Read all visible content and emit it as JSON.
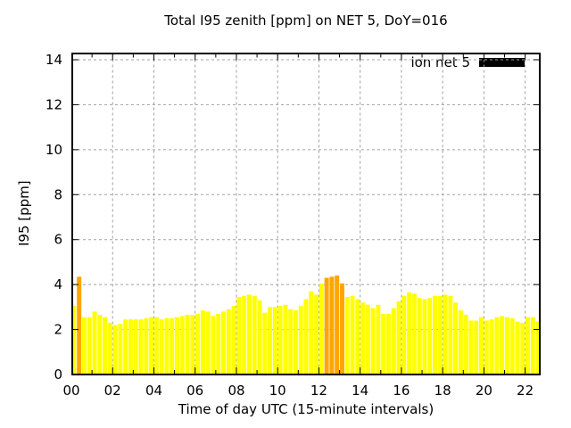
{
  "chart_data": {
    "type": "bar",
    "title": "Total I95 zenith [ppm] on NET 5, DoY=016",
    "xlabel": "Time of day UTC (15-minute intervals)",
    "ylabel": "I95 [ppm]",
    "legend": {
      "label": "ion net 5",
      "swatch_color": "#000000",
      "position": "top-right-inside"
    },
    "x_tick_labels": [
      "00",
      "02",
      "04",
      "06",
      "08",
      "10",
      "12",
      "14",
      "16",
      "18",
      "20",
      "22"
    ],
    "y_tick_labels": [
      "0",
      "2",
      "4",
      "6",
      "8",
      "10",
      "12",
      "14"
    ],
    "ylim": [
      0,
      14.3
    ],
    "xlim_hours": [
      0,
      22.78
    ],
    "grid": "dashed",
    "interval_minutes": 15,
    "categories": [
      "00:00",
      "00:15",
      "00:30",
      "00:45",
      "01:00",
      "01:15",
      "01:30",
      "01:45",
      "02:00",
      "02:15",
      "02:30",
      "02:45",
      "03:00",
      "03:15",
      "03:30",
      "03:45",
      "04:00",
      "04:15",
      "04:30",
      "04:45",
      "05:00",
      "05:15",
      "05:30",
      "05:45",
      "06:00",
      "06:15",
      "06:30",
      "06:45",
      "07:00",
      "07:15",
      "07:30",
      "07:45",
      "08:00",
      "08:15",
      "08:30",
      "08:45",
      "09:00",
      "09:15",
      "09:30",
      "09:45",
      "10:00",
      "10:15",
      "10:30",
      "10:45",
      "11:00",
      "11:15",
      "11:30",
      "11:45",
      "12:00",
      "12:15",
      "12:30",
      "12:45",
      "13:00",
      "13:15",
      "13:30",
      "13:45",
      "14:00",
      "14:15",
      "14:30",
      "14:45",
      "15:00",
      "15:15",
      "15:30",
      "15:45",
      "16:00",
      "16:15",
      "16:30",
      "16:45",
      "17:00",
      "17:15",
      "17:30",
      "17:45",
      "18:00",
      "18:15",
      "18:30",
      "18:45",
      "19:00",
      "19:15",
      "19:30",
      "19:45",
      "20:00",
      "20:15",
      "20:30",
      "20:45",
      "21:00",
      "21:15",
      "21:30",
      "21:45",
      "22:00",
      "22:15",
      "22:30"
    ],
    "values": [
      3.05,
      4.35,
      2.55,
      2.55,
      2.8,
      2.65,
      2.55,
      2.3,
      2.2,
      2.25,
      2.45,
      2.45,
      2.45,
      2.45,
      2.5,
      2.55,
      2.55,
      2.45,
      2.5,
      2.5,
      2.55,
      2.6,
      2.65,
      2.65,
      2.7,
      2.85,
      2.8,
      2.6,
      2.7,
      2.8,
      2.9,
      3.05,
      3.45,
      3.5,
      3.55,
      3.5,
      3.3,
      2.75,
      3.0,
      3.0,
      3.05,
      3.1,
      2.9,
      2.85,
      3.05,
      3.35,
      3.7,
      3.55,
      4.05,
      4.3,
      4.35,
      4.4,
      4.05,
      3.45,
      3.5,
      3.35,
      3.2,
      3.1,
      2.95,
      3.1,
      2.7,
      2.7,
      2.95,
      3.25,
      3.5,
      3.65,
      3.6,
      3.4,
      3.35,
      3.4,
      3.5,
      3.5,
      3.55,
      3.5,
      3.2,
      2.85,
      2.65,
      2.4,
      2.4,
      2.55,
      2.4,
      2.45,
      2.55,
      2.6,
      2.55,
      2.5,
      2.35,
      2.3,
      2.55,
      2.55,
      2.35
    ],
    "highlight_indices": [
      1,
      49,
      50,
      51,
      52
    ],
    "bar_color_default": "#ffff00",
    "bar_color_highlight": "#ffa500"
  },
  "colors": {
    "background": "#ffffff",
    "grid": "#a0a0a0",
    "axis": "#000000",
    "text": "#000000"
  }
}
